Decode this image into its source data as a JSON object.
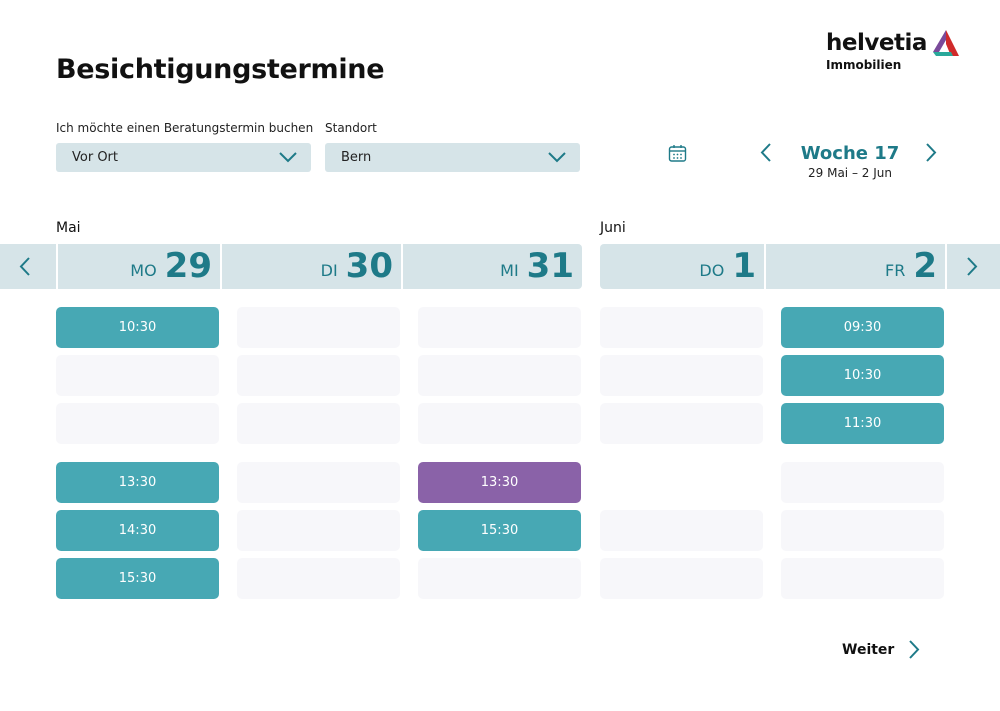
{
  "title": "Besichtigungstermine",
  "logo": {
    "brand": "helvetia",
    "sub": "Immobilien"
  },
  "filters": {
    "type_label": "Ich möchte einen Beratungstermin buchen",
    "type_value": "Vor Ort",
    "location_label": "Standort",
    "location_value": "Bern"
  },
  "week": {
    "title": "Woche 17",
    "range": "29 Mai – 2 Jun"
  },
  "months": [
    "Mai",
    "Juni"
  ],
  "days": [
    {
      "abbr": "MO",
      "num": "29",
      "slots": [
        {
          "time": "10:30",
          "state": "free"
        },
        {
          "state": "empty"
        },
        {
          "state": "empty"
        },
        {
          "time": "13:30",
          "state": "free"
        },
        {
          "time": "14:30",
          "state": "free"
        },
        {
          "time": "15:30",
          "state": "free"
        }
      ]
    },
    {
      "abbr": "DI",
      "num": "30",
      "slots": [
        {
          "state": "empty"
        },
        {
          "state": "empty"
        },
        {
          "state": "empty"
        },
        {
          "state": "empty"
        },
        {
          "state": "empty"
        },
        {
          "state": "empty"
        }
      ]
    },
    {
      "abbr": "MI",
      "num": "31",
      "slots": [
        {
          "state": "empty"
        },
        {
          "state": "empty"
        },
        {
          "state": "empty"
        },
        {
          "time": "13:30",
          "state": "selected"
        },
        {
          "time": "15:30",
          "state": "free"
        },
        {
          "state": "empty"
        }
      ]
    },
    {
      "abbr": "DO",
      "num": "1",
      "slots": [
        {
          "state": "empty"
        },
        {
          "state": "empty"
        },
        {
          "state": "empty"
        },
        {
          "state": "none"
        },
        {
          "state": "empty"
        },
        {
          "state": "empty"
        }
      ]
    },
    {
      "abbr": "FR",
      "num": "2",
      "slots": [
        {
          "time": "09:30",
          "state": "free"
        },
        {
          "time": "10:30",
          "state": "free"
        },
        {
          "time": "11:30",
          "state": "free"
        },
        {
          "state": "empty"
        },
        {
          "state": "empty"
        },
        {
          "state": "empty"
        }
      ]
    }
  ],
  "next_label": "Weiter",
  "colors": {
    "accent": "#1e7a88",
    "slot": "#47a8b4",
    "selected": "#8a62a8",
    "header": "#d6e4e8"
  }
}
